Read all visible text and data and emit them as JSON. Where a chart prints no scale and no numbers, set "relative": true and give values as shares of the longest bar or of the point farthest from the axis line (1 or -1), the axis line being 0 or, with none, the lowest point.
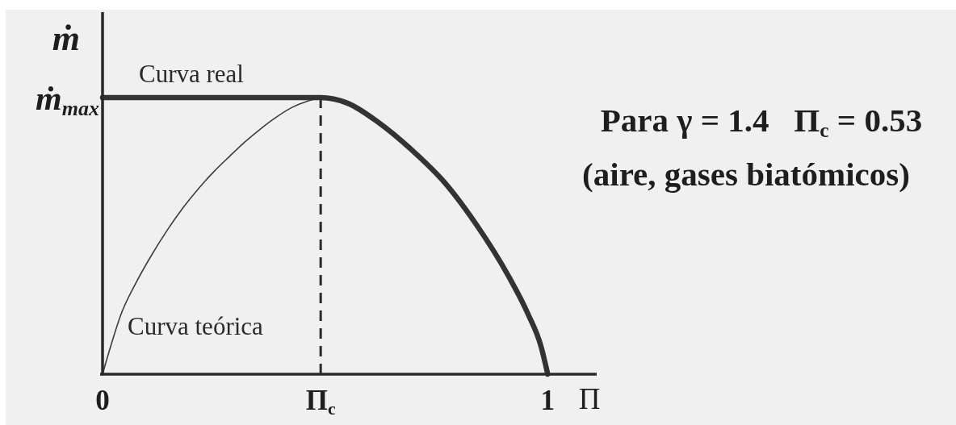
{
  "chart_data": {
    "type": "line",
    "xlabel": "Π",
    "ylabel": "ṁ",
    "relative": true,
    "xlim": [
      0,
      1.11
    ],
    "xticks": [
      0,
      {
        "value": 0.49,
        "label": "Π$_{c}$"
      },
      1
    ],
    "series": [
      {
        "name": "Curva teórica",
        "color": "#3c3c3c",
        "x": [
          0,
          0.02,
          0.04,
          0.075,
          0.11,
          0.145,
          0.18,
          0.215,
          0.25,
          0.285,
          0.32,
          0.355,
          0.39,
          0.425,
          0.46,
          0.49
        ],
        "values": [
          0,
          0.11,
          0.21,
          0.33,
          0.43,
          0.52,
          0.6,
          0.67,
          0.732,
          0.787,
          0.84,
          0.887,
          0.929,
          0.964,
          0.987,
          1
        ]
      },
      {
        "name": "Curva real",
        "color": "#333333",
        "x": [
          0,
          0.49,
          0.55,
          0.62,
          0.695,
          0.77,
          0.84,
          0.91,
          0.955,
          0.985,
          1
        ],
        "values": [
          1,
          1,
          0.98,
          0.91,
          0.81,
          0.69,
          0.54,
          0.36,
          0.22,
          0.1,
          0
        ]
      }
    ],
    "ref_lines": [
      {
        "axis": "x",
        "value": 0.49,
        "color": "#2a2a2a",
        "line_style": "dashed"
      }
    ],
    "annotations": [
      {
        "text": "ṁ$_{max}$",
        "x": 0,
        "y": 1
      },
      "Para γ = 1.4   Π$_{c}$ = 0.53",
      "(aire, gases biatómicos)"
    ]
  }
}
